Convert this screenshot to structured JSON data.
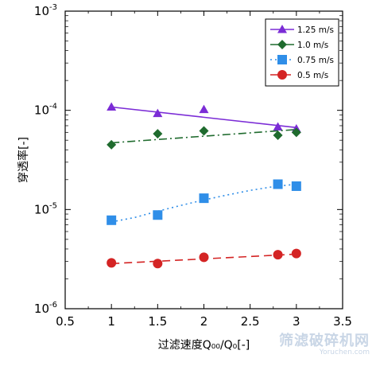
{
  "watermark": {
    "text": "筛滤破碎机网",
    "sub": "Yoruchen.com"
  },
  "chart_data": {
    "type": "scatter",
    "title": "",
    "xlabel": "过滤速度Q₀₀/Q₀[-]",
    "ylabel": "穿透率[-]",
    "xlim": [
      0.5,
      3.5
    ],
    "ylim": [
      1e-06,
      0.001
    ],
    "yscale": "log",
    "grid": false,
    "legend_position": "top-right",
    "x_ticks": [
      0.5,
      1,
      1.5,
      2,
      2.5,
      3,
      3.5
    ],
    "x_tick_labels": [
      "0.5",
      "1",
      "1.5",
      "2",
      "2.5",
      "3",
      "3.5"
    ],
    "y_ticks": [
      1e-06,
      1e-05,
      0.0001,
      0.001
    ],
    "y_tick_labels": [
      {
        "base": "10",
        "exp": "-6"
      },
      {
        "base": "10",
        "exp": "-5"
      },
      {
        "base": "10",
        "exp": "-4"
      },
      {
        "base": "10",
        "exp": "-3"
      }
    ],
    "series": [
      {
        "name": "1.25 m/s",
        "color": "#7b2cd6",
        "marker": "triangle",
        "line": "solid",
        "points": [
          [
            1.0,
            0.000108
          ],
          [
            1.5,
            9.3e-05
          ],
          [
            2.0,
            0.000102
          ],
          [
            2.8,
            6.8e-05
          ],
          [
            3.0,
            6.5e-05
          ]
        ],
        "fit": [
          [
            1.0,
            0.000108
          ],
          [
            3.0,
            6.7e-05
          ]
        ]
      },
      {
        "name": "1.0 m/s",
        "color": "#1f6b2e",
        "marker": "diamond",
        "line": "dashdot",
        "points": [
          [
            1.0,
            4.5e-05
          ],
          [
            1.5,
            5.8e-05
          ],
          [
            2.0,
            6.2e-05
          ],
          [
            2.8,
            5.6e-05
          ],
          [
            3.0,
            6e-05
          ]
        ],
        "fit": [
          [
            1.0,
            4.7e-05
          ],
          [
            3.0,
            6.4e-05
          ]
        ]
      },
      {
        "name": "0.75 m/s",
        "color": "#2f8ee8",
        "marker": "square",
        "line": "dotted",
        "points": [
          [
            1.0,
            7.8e-06
          ],
          [
            1.5,
            8.8e-06
          ],
          [
            2.0,
            1.3e-05
          ],
          [
            2.8,
            1.8e-05
          ],
          [
            3.0,
            1.72e-05
          ]
        ],
        "fit": [
          [
            1.0,
            7.5e-06
          ],
          [
            1.25,
            8.3e-06
          ],
          [
            1.5,
            9.6e-06
          ],
          [
            1.75,
            1.1e-05
          ],
          [
            2.0,
            1.25e-05
          ],
          [
            2.25,
            1.4e-05
          ],
          [
            2.5,
            1.56e-05
          ],
          [
            2.75,
            1.7e-05
          ],
          [
            3.0,
            1.8e-05
          ]
        ]
      },
      {
        "name": "0.5 m/s",
        "color": "#d42424",
        "marker": "circle",
        "line": "dashed",
        "points": [
          [
            1.0,
            2.9e-06
          ],
          [
            1.5,
            2.85e-06
          ],
          [
            2.0,
            3.3e-06
          ],
          [
            2.8,
            3.5e-06
          ],
          [
            3.0,
            3.6e-06
          ]
        ],
        "fit": [
          [
            1.0,
            2.85e-06
          ],
          [
            3.0,
            3.55e-06
          ]
        ]
      }
    ]
  }
}
